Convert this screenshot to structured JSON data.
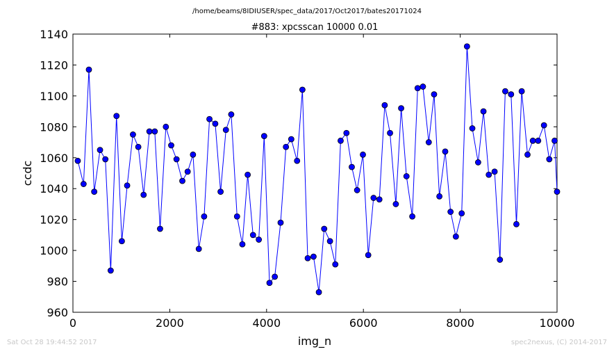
{
  "header": {
    "path": "/home/beams/8IDIUSER/spec_data/2017/Oct2017/bates20171024"
  },
  "footer": {
    "timestamp": "Sat Oct 28 19:44:52 2017",
    "credit": "spec2nexus, (C) 2014-2017"
  },
  "chart_data": {
    "type": "line",
    "title": "#883: xpcsscan 10000 0.01",
    "xlabel": "img_n",
    "ylabel": "ccdc",
    "xlim": [
      0,
      10000
    ],
    "ylim": [
      960,
      1140
    ],
    "xticks": [
      0,
      2000,
      4000,
      6000,
      8000,
      10000
    ],
    "yticks": [
      960,
      980,
      1000,
      1020,
      1040,
      1060,
      1080,
      1100,
      1120,
      1140
    ],
    "grid": false,
    "marker": "circle",
    "color": "#0000ff",
    "series": [
      {
        "x": [
          100,
          220,
          330,
          440,
          560,
          670,
          780,
          900,
          1010,
          1120,
          1240,
          1350,
          1460,
          1580,
          1690,
          1800,
          1920,
          2030,
          2140,
          2260,
          2370,
          2480,
          2600,
          2710,
          2820,
          2940,
          3050,
          3160,
          3270,
          3390,
          3500,
          3610,
          3720,
          3840,
          3950,
          4060,
          4170,
          4290,
          4400,
          4510,
          4630,
          4740,
          4850,
          4970,
          5080,
          5190,
          5310,
          5420,
          5530,
          5650,
          5760,
          5870,
          5990,
          6100,
          6210,
          6330,
          6440,
          6550,
          6670,
          6780,
          6890,
          7010,
          7120,
          7230,
          7350,
          7460,
          7570,
          7690,
          7800,
          7910,
          8030,
          8140,
          8250,
          8370,
          8480,
          8590,
          8710,
          8820,
          8930,
          9050,
          9160,
          9270,
          9390,
          9500,
          9610,
          9730,
          9840,
          9950,
          10000
        ],
        "values": [
          1058,
          1043,
          1117,
          1038,
          1065,
          1059,
          987,
          1087,
          1006,
          1042,
          1075,
          1067,
          1036,
          1077,
          1077,
          1014,
          1080,
          1068,
          1059,
          1045,
          1051,
          1062,
          1001,
          1022,
          1085,
          1082,
          1038,
          1078,
          1088,
          1022,
          1004,
          1049,
          1010,
          1007,
          1074,
          979,
          983,
          1018,
          1067,
          1072,
          1058,
          1104,
          995,
          996,
          973,
          1014,
          1006,
          991,
          1071,
          1076,
          1054,
          1039,
          1062,
          997,
          1034,
          1033,
          1094,
          1076,
          1030,
          1092,
          1048,
          1022,
          1105,
          1106,
          1070,
          1101,
          1035,
          1064,
          1025,
          1009,
          1024,
          1132,
          1079,
          1057,
          1090,
          1049,
          1051,
          994,
          1103,
          1101,
          1017,
          1103,
          1062,
          1071,
          1071,
          1081,
          1059,
          1071,
          1038
        ]
      }
    ]
  }
}
